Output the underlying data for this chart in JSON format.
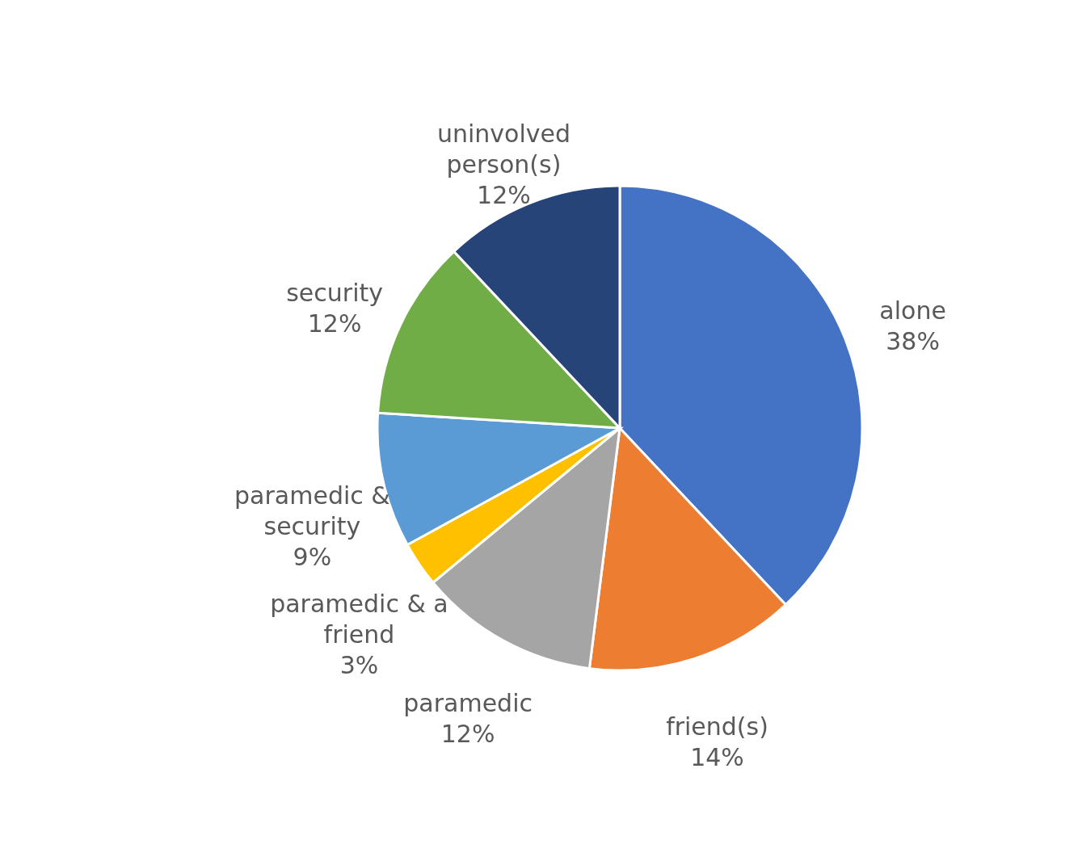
{
  "chart_data": {
    "type": "pie",
    "categories": [
      "alone",
      "friend(s)",
      "paramedic",
      "paramedic & a friend",
      "paramedic & security",
      "security",
      "uninvolved person(s)"
    ],
    "values": [
      38,
      14,
      12,
      3,
      9,
      12,
      12
    ],
    "value_labels": [
      "38%",
      "14%",
      "12%",
      "3%",
      "9%",
      "12%",
      "12%"
    ],
    "colors": [
      "#4472c4",
      "#ed7d31",
      "#a5a5a5",
      "#ffc000",
      "#5b9bd5",
      "#70ad47",
      "#264478"
    ],
    "legend": false
  }
}
